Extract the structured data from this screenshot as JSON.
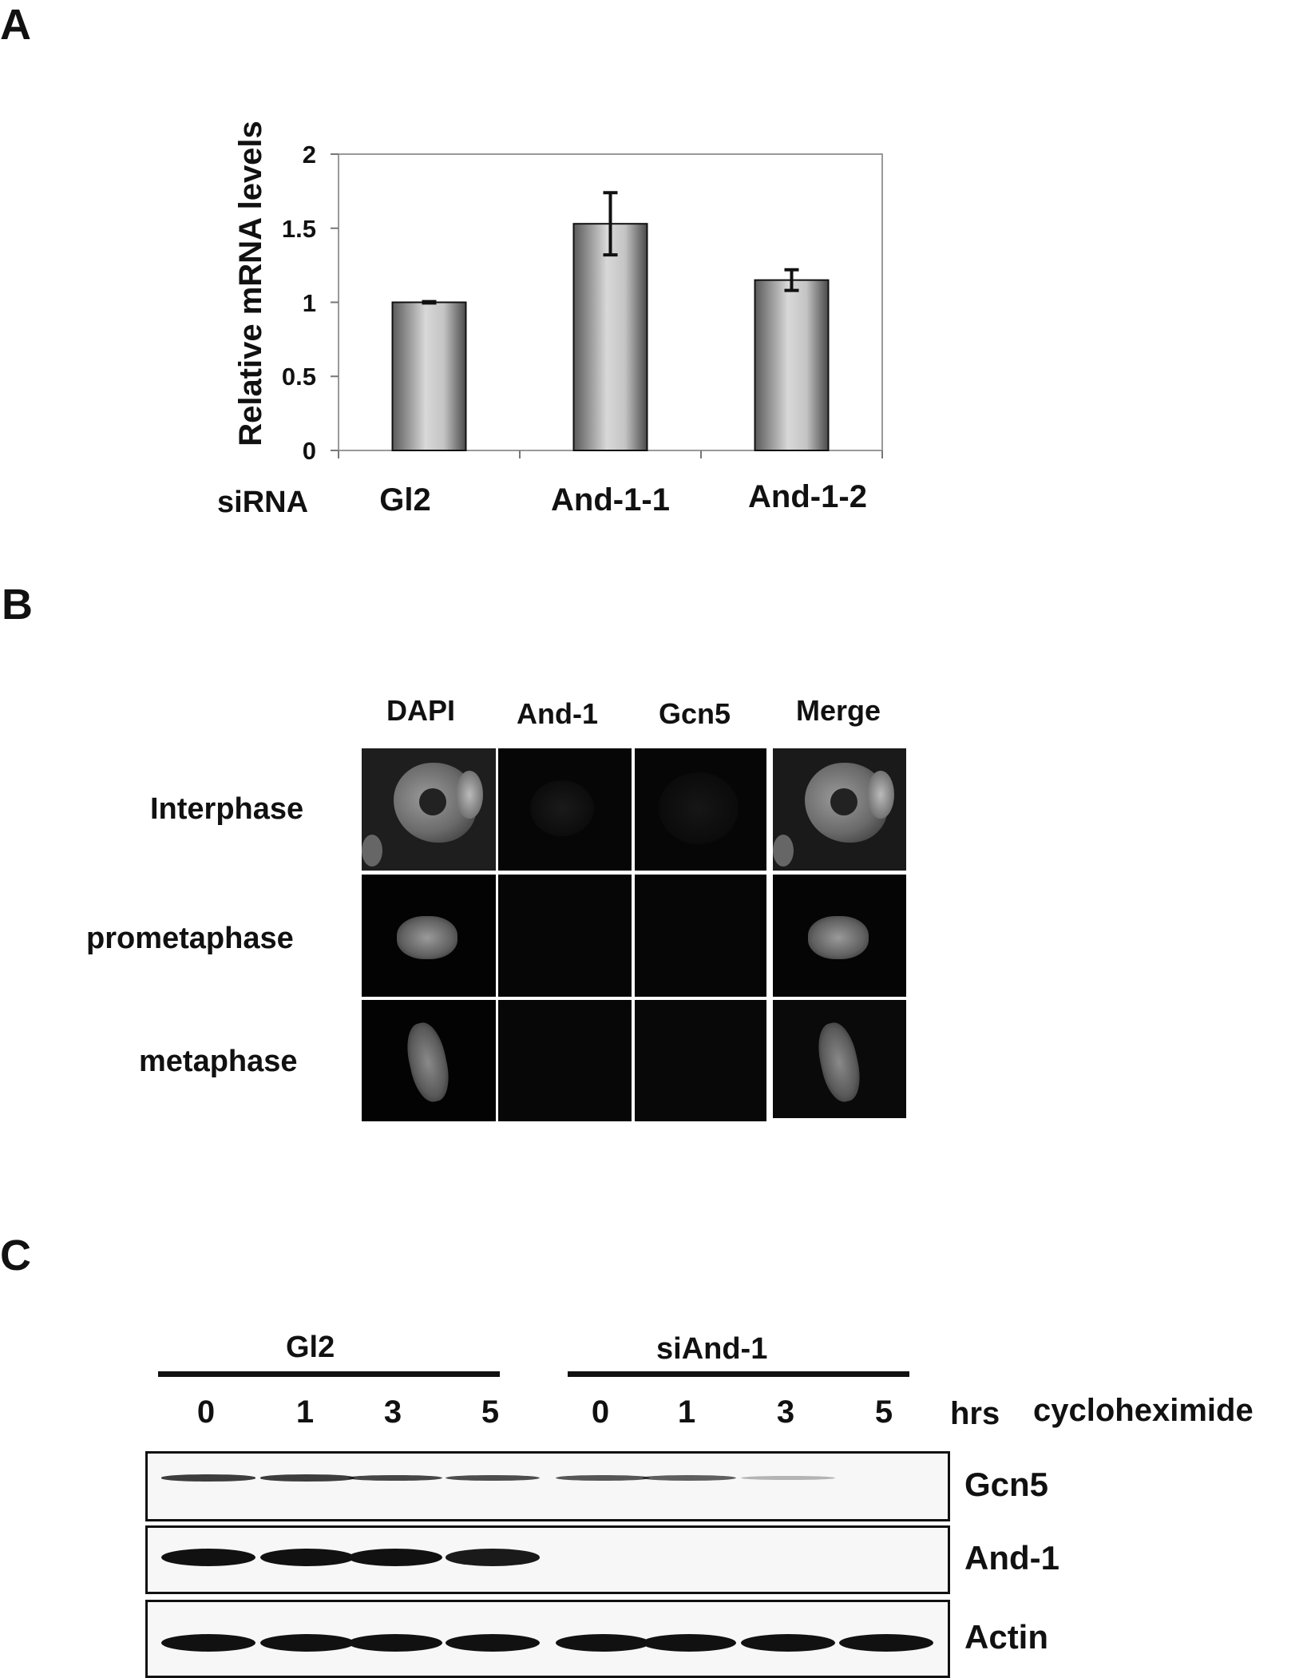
{
  "panels": {
    "a": "A",
    "b": "B",
    "c": "C"
  },
  "chart_data": {
    "type": "bar",
    "ylabel": "Relative mRNA levels",
    "xlabel": "siRNA",
    "ylim": [
      0,
      2
    ],
    "yticks": [
      0,
      0.5,
      1,
      1.5,
      2
    ],
    "yticklabels": [
      "0",
      "0.5",
      "1",
      "1.5",
      "2"
    ],
    "categories": [
      "Gl2",
      "And-1-1",
      "And-1-2"
    ],
    "values": [
      1.0,
      1.53,
      1.15
    ],
    "errors": [
      0.005,
      0.21,
      0.07
    ],
    "grid": false
  },
  "panel_b": {
    "columns": [
      "DAPI",
      "And-1",
      "Gcn5",
      "Merge"
    ],
    "rows": [
      "Interphase",
      "prometaphase",
      "metaphase"
    ]
  },
  "panel_c": {
    "groups": [
      "Gl2",
      "siAnd-1"
    ],
    "times": [
      "0",
      "1",
      "3",
      "5",
      "0",
      "1",
      "3",
      "5"
    ],
    "time_unit": "hrs",
    "treatment": "cycloheximide",
    "blots": [
      {
        "name": "Gcn5",
        "levels": [
          0.75,
          0.75,
          0.7,
          0.65,
          0.6,
          0.55,
          0.05,
          0.0
        ]
      },
      {
        "name": "And-1",
        "levels": [
          1.0,
          1.0,
          1.0,
          0.95,
          0.0,
          0.0,
          0.0,
          0.0
        ]
      },
      {
        "name": "Actin",
        "levels": [
          1.0,
          1.0,
          1.0,
          1.0,
          1.0,
          1.0,
          1.0,
          1.0
        ]
      }
    ]
  }
}
